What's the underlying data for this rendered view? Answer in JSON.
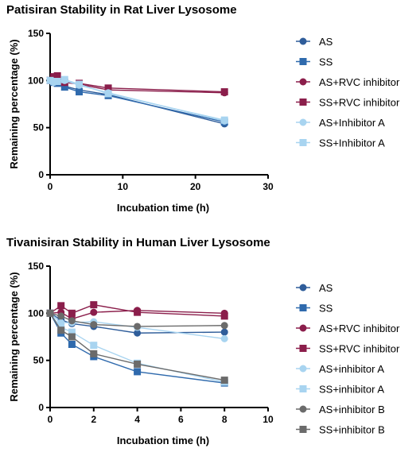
{
  "chart_data": [
    {
      "type": "line",
      "title": "Patisiran Stability in Rat Liver Lysosome",
      "xlabel": "Incubation time (h)",
      "ylabel": "Remaining percentage (%)",
      "xlim": [
        0,
        30
      ],
      "ylim": [
        0,
        150
      ],
      "xticks": [
        "0",
        "10",
        "20",
        "30"
      ],
      "yticks": [
        "0",
        "50",
        "100",
        "150"
      ],
      "grid": false,
      "legend_position": "right",
      "x": [
        0,
        0.5,
        1,
        2,
        4,
        8,
        24
      ],
      "series": [
        {
          "name": "AS",
          "color": "#2f5d9a",
          "marker": "circle",
          "values": [
            100,
            99,
            98,
            94,
            90,
            85,
            54
          ]
        },
        {
          "name": "SS",
          "color": "#2f6aad",
          "marker": "square",
          "values": [
            100,
            98,
            97,
            93,
            88,
            84,
            56
          ]
        },
        {
          "name": "AS+RVC inhibitor",
          "color": "#8b1e4b",
          "marker": "circle",
          "values": [
            100,
            101,
            100,
            98,
            96,
            90,
            87
          ]
        },
        {
          "name": "SS+RVC inhibitor",
          "color": "#8b1e4b",
          "marker": "square",
          "values": [
            100,
            104,
            105,
            98,
            97,
            92,
            88
          ]
        },
        {
          "name": "AS+Inhibitor A",
          "color": "#a8d4f0",
          "marker": "circle",
          "values": [
            100,
            98,
            99,
            100,
            95,
            87,
            57
          ]
        },
        {
          "name": "SS+Inhibitor A",
          "color": "#a8d4f0",
          "marker": "square",
          "values": [
            100,
            99,
            99,
            101,
            96,
            86,
            58
          ]
        }
      ]
    },
    {
      "type": "line",
      "title": "Tivanisiran Stability in Human Liver Lysosome",
      "xlabel": "Incubation time (h)",
      "ylabel": "Remaining percentage (%)",
      "xlim": [
        0,
        10
      ],
      "ylim": [
        0,
        150
      ],
      "xticks": [
        "0",
        "2",
        "4",
        "6",
        "8",
        "10"
      ],
      "yticks": [
        "0",
        "50",
        "100",
        "150"
      ],
      "grid": false,
      "legend_position": "right",
      "x": [
        0,
        0.5,
        1,
        2,
        4,
        8
      ],
      "series": [
        {
          "name": "AS",
          "color": "#2f5d9a",
          "marker": "circle",
          "values": [
            100,
            93,
            89,
            86,
            79,
            80
          ]
        },
        {
          "name": "SS",
          "color": "#2f6aad",
          "marker": "square",
          "values": [
            100,
            79,
            67,
            54,
            38,
            26
          ]
        },
        {
          "name": "AS+RVC inhibitor",
          "color": "#8b1e4b",
          "marker": "circle",
          "values": [
            100,
            101,
            94,
            101,
            103,
            100
          ]
        },
        {
          "name": "SS+RVC inhibitor",
          "color": "#8b1e4b",
          "marker": "square",
          "values": [
            100,
            108,
            100,
            109,
            101,
            97
          ]
        },
        {
          "name": "AS+inhibitor A",
          "color": "#a8d4f0",
          "marker": "circle",
          "values": [
            100,
            90,
            90,
            91,
            85,
            73
          ]
        },
        {
          "name": "SS+inhibitor A",
          "color": "#a8d4f0",
          "marker": "square",
          "values": [
            100,
            85,
            80,
            66,
            47,
            27
          ]
        },
        {
          "name": "AS+inhibitor B",
          "color": "#6b6b6b",
          "marker": "circle",
          "values": [
            100,
            97,
            92,
            88,
            86,
            87
          ]
        },
        {
          "name": "SS+inhibitor B",
          "color": "#6b6b6b",
          "marker": "square",
          "values": [
            100,
            82,
            75,
            57,
            46,
            29
          ]
        }
      ]
    }
  ]
}
